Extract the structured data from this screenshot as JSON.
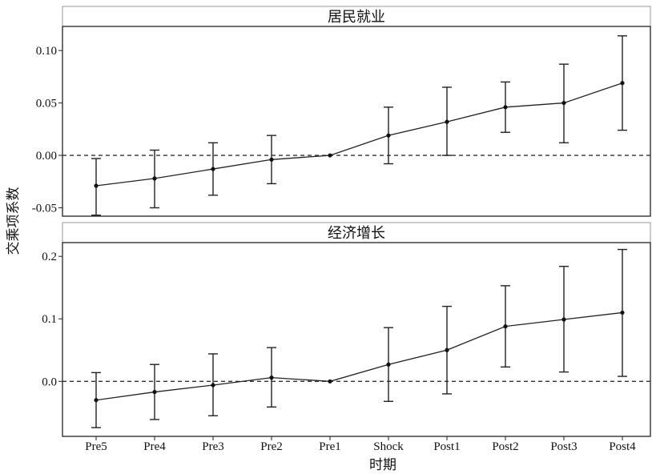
{
  "chart_data": {
    "type": "line",
    "shared": {
      "xlabel": "时期",
      "ylabel": "交乘项系数",
      "categories": [
        "Pre5",
        "Pre4",
        "Pre3",
        "Pre2",
        "Pre1",
        "Shock",
        "Post1",
        "Post2",
        "Post3",
        "Post4"
      ],
      "reference_line": 0,
      "error_bars": true,
      "grid": false,
      "legend": "none"
    },
    "panels": [
      {
        "title": "居民就业",
        "ylim": [
          -0.058,
          0.123
        ],
        "yticks": [
          0.1,
          0.05,
          0.0,
          -0.05
        ],
        "ytick_labels": [
          "0.10",
          "0.05",
          "0.00",
          "-0.05"
        ],
        "estimate": [
          -0.029,
          -0.022,
          -0.013,
          -0.004,
          0.0,
          0.019,
          0.032,
          0.046,
          0.05,
          0.069
        ],
        "lower": [
          -0.057,
          -0.05,
          -0.038,
          -0.027,
          0.0,
          -0.008,
          0.0,
          0.022,
          0.012,
          0.024
        ],
        "upper": [
          -0.003,
          0.005,
          0.012,
          0.019,
          0.0,
          0.046,
          0.065,
          0.07,
          0.087,
          0.114
        ]
      },
      {
        "title": "经济增长",
        "ylim": [
          -0.088,
          0.222
        ],
        "yticks": [
          0.2,
          0.1,
          0.0
        ],
        "ytick_labels": [
          "0.2",
          "0.1",
          "0.0"
        ],
        "estimate": [
          -0.03,
          -0.017,
          -0.006,
          0.006,
          0.0,
          0.027,
          0.05,
          0.088,
          0.099,
          0.11
        ],
        "lower": [
          -0.074,
          -0.061,
          -0.055,
          -0.041,
          0.0,
          -0.032,
          -0.02,
          0.023,
          0.015,
          0.008
        ],
        "upper": [
          0.014,
          0.027,
          0.044,
          0.054,
          0.0,
          0.086,
          0.12,
          0.153,
          0.184,
          0.211
        ]
      }
    ]
  }
}
